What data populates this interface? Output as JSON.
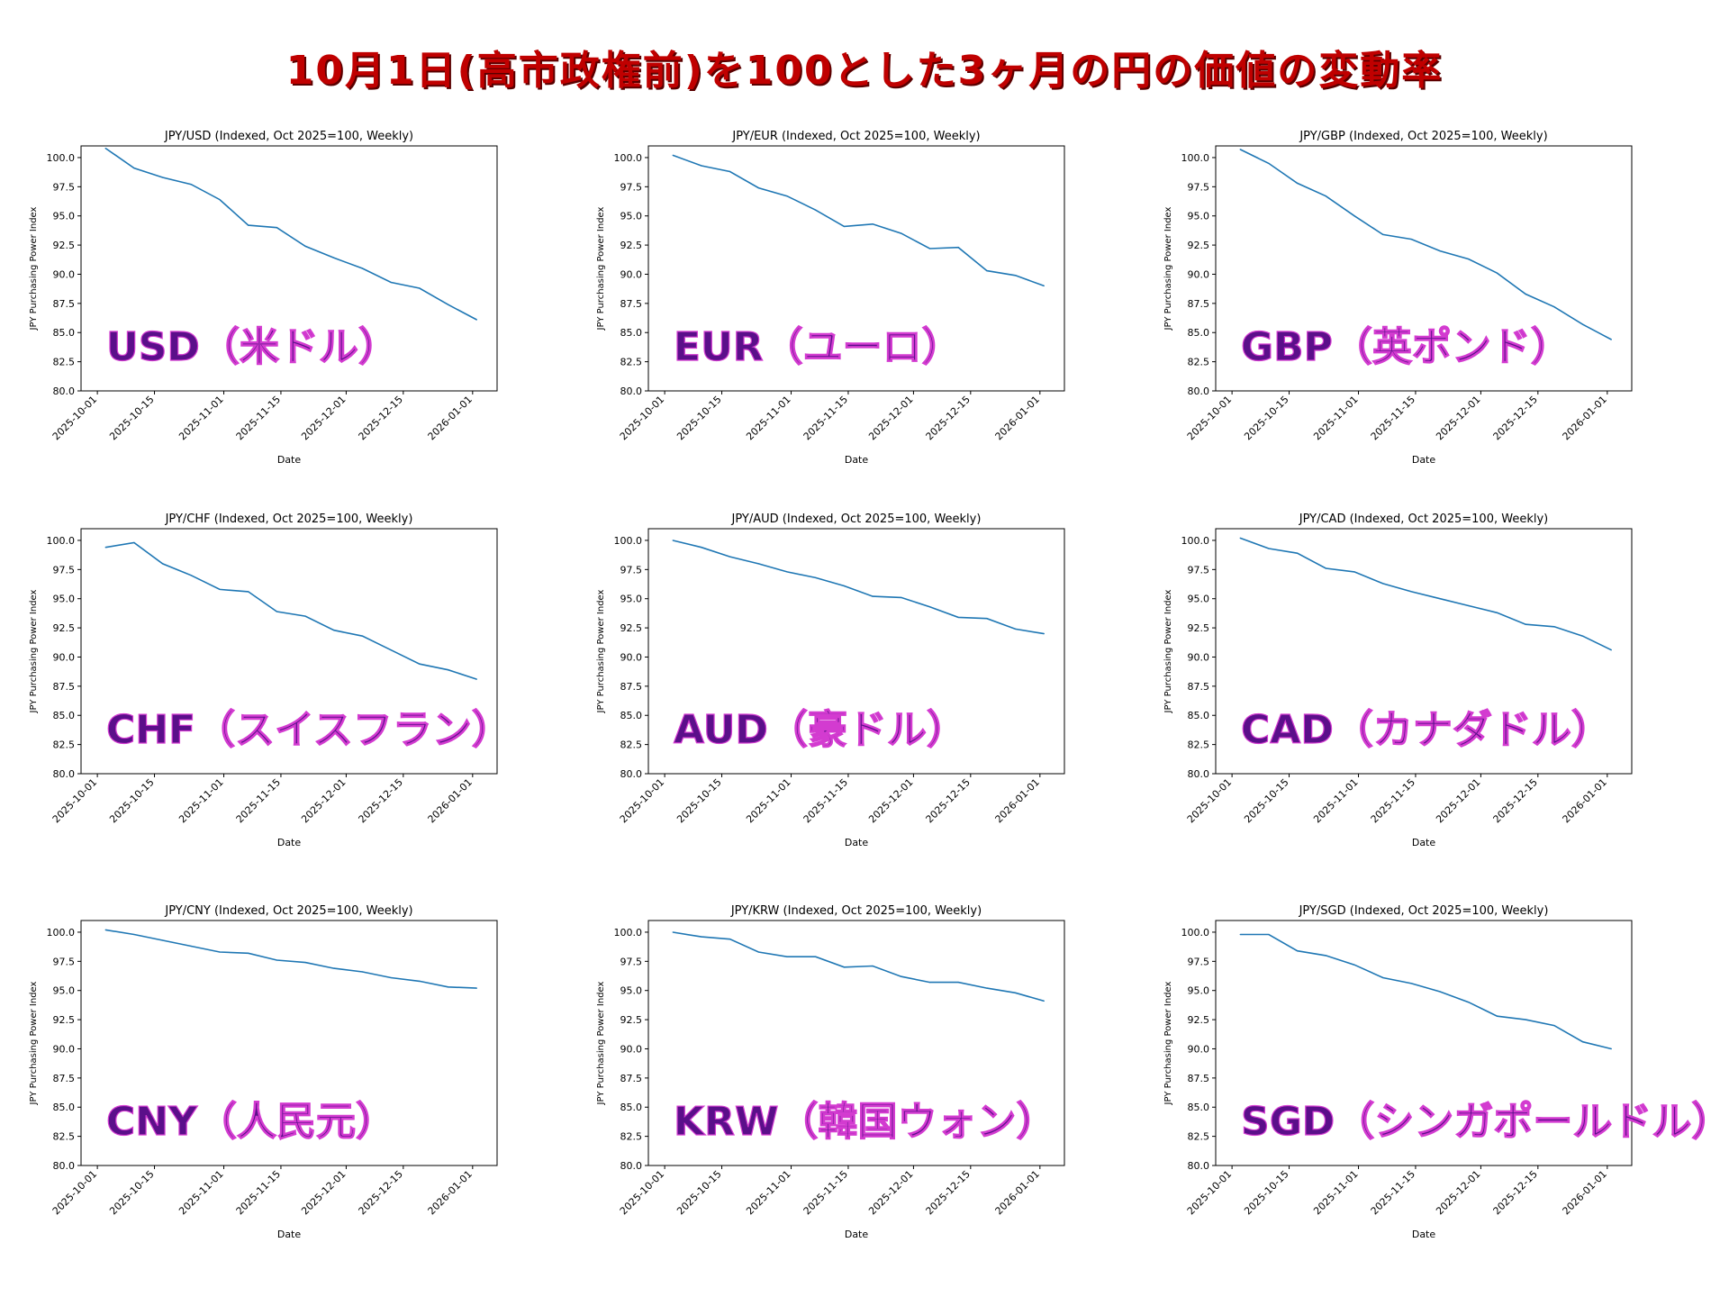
{
  "page": {
    "title": "10月1日(高市政権前)を100とした3ヶ月の円の価値の変動率"
  },
  "style": {
    "line_color": "#1f77b4",
    "overlay_fill": "#5b0f8a",
    "overlay_stroke": "#d33bd0",
    "title_color": "#c00000"
  },
  "chart_data": [
    {
      "type": "line",
      "title": "JPY/USD (Indexed, Oct 2025=100, Weekly)",
      "overlay_label": "USD（米ドル）",
      "xlabel": "Date",
      "ylabel": "JPY Purchasing Power Index",
      "ylim": [
        80,
        100
      ],
      "yticks": [
        "80.0",
        "82.5",
        "85.0",
        "87.5",
        "90.0",
        "92.5",
        "95.0",
        "97.5",
        "100.0"
      ],
      "xticks": [
        "2025-10-01",
        "2025-10-15",
        "2025-11-01",
        "2025-11-15",
        "2025-12-01",
        "2025-12-15",
        "2026-01-01"
      ],
      "x": [
        "2025-10-03",
        "2025-10-10",
        "2025-10-17",
        "2025-10-24",
        "2025-10-31",
        "2025-11-07",
        "2025-11-14",
        "2025-11-21",
        "2025-11-28",
        "2025-12-05",
        "2025-12-12",
        "2025-12-19",
        "2025-12-26",
        "2026-01-02"
      ],
      "values": [
        100.8,
        99.1,
        98.3,
        97.7,
        96.4,
        94.2,
        94.0,
        92.4,
        91.4,
        90.5,
        89.3,
        88.8,
        87.4,
        86.1
      ]
    },
    {
      "type": "line",
      "title": "JPY/EUR (Indexed, Oct 2025=100, Weekly)",
      "overlay_label": "EUR（ユーロ）",
      "xlabel": "Date",
      "ylabel": "JPY Purchasing Power Index",
      "ylim": [
        80,
        100
      ],
      "yticks": [
        "80.0",
        "82.5",
        "85.0",
        "87.5",
        "90.0",
        "92.5",
        "95.0",
        "97.5",
        "100.0"
      ],
      "xticks": [
        "2025-10-01",
        "2025-10-15",
        "2025-11-01",
        "2025-11-15",
        "2025-12-01",
        "2025-12-15",
        "2026-01-01"
      ],
      "x": [
        "2025-10-03",
        "2025-10-10",
        "2025-10-17",
        "2025-10-24",
        "2025-10-31",
        "2025-11-07",
        "2025-11-14",
        "2025-11-21",
        "2025-11-28",
        "2025-12-05",
        "2025-12-12",
        "2025-12-19",
        "2025-12-26",
        "2026-01-02"
      ],
      "values": [
        100.2,
        99.3,
        98.8,
        97.4,
        96.7,
        95.5,
        94.1,
        94.3,
        93.5,
        92.2,
        92.3,
        90.3,
        89.9,
        89.0
      ]
    },
    {
      "type": "line",
      "title": "JPY/GBP (Indexed, Oct 2025=100, Weekly)",
      "overlay_label": "GBP（英ポンド）",
      "xlabel": "Date",
      "ylabel": "JPY Purchasing Power Index",
      "ylim": [
        80,
        100
      ],
      "yticks": [
        "80.0",
        "82.5",
        "85.0",
        "87.5",
        "90.0",
        "92.5",
        "95.0",
        "97.5",
        "100.0"
      ],
      "xticks": [
        "2025-10-01",
        "2025-10-15",
        "2025-11-01",
        "2025-11-15",
        "2025-12-01",
        "2025-12-15",
        "2026-01-01"
      ],
      "x": [
        "2025-10-03",
        "2025-10-10",
        "2025-10-17",
        "2025-10-24",
        "2025-10-31",
        "2025-11-07",
        "2025-11-14",
        "2025-11-21",
        "2025-11-28",
        "2025-12-05",
        "2025-12-12",
        "2025-12-19",
        "2025-12-26",
        "2026-01-02"
      ],
      "values": [
        100.7,
        99.5,
        97.8,
        96.7,
        95.0,
        93.4,
        93.0,
        92.0,
        91.3,
        90.1,
        88.3,
        87.2,
        85.7,
        84.4
      ]
    },
    {
      "type": "line",
      "title": "JPY/CHF (Indexed, Oct 2025=100, Weekly)",
      "overlay_label": "CHF（スイスフラン）",
      "xlabel": "Date",
      "ylabel": "JPY Purchasing Power Index",
      "ylim": [
        80,
        100
      ],
      "yticks": [
        "80.0",
        "82.5",
        "85.0",
        "87.5",
        "90.0",
        "92.5",
        "95.0",
        "97.5",
        "100.0"
      ],
      "xticks": [
        "2025-10-01",
        "2025-10-15",
        "2025-11-01",
        "2025-11-15",
        "2025-12-01",
        "2025-12-15",
        "2026-01-01"
      ],
      "x": [
        "2025-10-03",
        "2025-10-10",
        "2025-10-17",
        "2025-10-24",
        "2025-10-31",
        "2025-11-07",
        "2025-11-14",
        "2025-11-21",
        "2025-11-28",
        "2025-12-05",
        "2025-12-12",
        "2025-12-19",
        "2025-12-26",
        "2026-01-02"
      ],
      "values": [
        99.4,
        99.8,
        98.0,
        97.0,
        95.8,
        95.6,
        93.9,
        93.5,
        92.3,
        91.8,
        90.6,
        89.4,
        88.9,
        88.1
      ]
    },
    {
      "type": "line",
      "title": "JPY/AUD (Indexed, Oct 2025=100, Weekly)",
      "overlay_label": "AUD（豪ドル）",
      "xlabel": "Date",
      "ylabel": "JPY Purchasing Power Index",
      "ylim": [
        80,
        100
      ],
      "yticks": [
        "80.0",
        "82.5",
        "85.0",
        "87.5",
        "90.0",
        "92.5",
        "95.0",
        "97.5",
        "100.0"
      ],
      "xticks": [
        "2025-10-01",
        "2025-10-15",
        "2025-11-01",
        "2025-11-15",
        "2025-12-01",
        "2025-12-15",
        "2026-01-01"
      ],
      "x": [
        "2025-10-03",
        "2025-10-10",
        "2025-10-17",
        "2025-10-24",
        "2025-10-31",
        "2025-11-07",
        "2025-11-14",
        "2025-11-21",
        "2025-11-28",
        "2025-12-05",
        "2025-12-12",
        "2025-12-19",
        "2025-12-26",
        "2026-01-02"
      ],
      "values": [
        100.0,
        99.4,
        98.6,
        98.0,
        97.3,
        96.8,
        96.1,
        95.2,
        95.1,
        94.3,
        93.4,
        93.3,
        92.4,
        92.0
      ]
    },
    {
      "type": "line",
      "title": "JPY/CAD (Indexed, Oct 2025=100, Weekly)",
      "overlay_label": "CAD（カナダドル）",
      "xlabel": "Date",
      "ylabel": "JPY Purchasing Power Index",
      "ylim": [
        80,
        100
      ],
      "yticks": [
        "80.0",
        "82.5",
        "85.0",
        "87.5",
        "90.0",
        "92.5",
        "95.0",
        "97.5",
        "100.0"
      ],
      "xticks": [
        "2025-10-01",
        "2025-10-15",
        "2025-11-01",
        "2025-11-15",
        "2025-12-01",
        "2025-12-15",
        "2026-01-01"
      ],
      "x": [
        "2025-10-03",
        "2025-10-10",
        "2025-10-17",
        "2025-10-24",
        "2025-10-31",
        "2025-11-07",
        "2025-11-14",
        "2025-11-21",
        "2025-11-28",
        "2025-12-05",
        "2025-12-12",
        "2025-12-19",
        "2025-12-26",
        "2026-01-02"
      ],
      "values": [
        100.2,
        99.3,
        98.9,
        97.6,
        97.3,
        96.3,
        95.6,
        95.0,
        94.4,
        93.8,
        92.8,
        92.6,
        91.8,
        90.6
      ]
    },
    {
      "type": "line",
      "title": "JPY/CNY (Indexed, Oct 2025=100, Weekly)",
      "overlay_label": "CNY（人民元）",
      "xlabel": "Date",
      "ylabel": "JPY Purchasing Power Index",
      "ylim": [
        80,
        100
      ],
      "yticks": [
        "80.0",
        "82.5",
        "85.0",
        "87.5",
        "90.0",
        "92.5",
        "95.0",
        "97.5",
        "100.0"
      ],
      "xticks": [
        "2025-10-01",
        "2025-10-15",
        "2025-11-01",
        "2025-11-15",
        "2025-12-01",
        "2025-12-15",
        "2026-01-01"
      ],
      "x": [
        "2025-10-03",
        "2025-10-10",
        "2025-10-17",
        "2025-10-24",
        "2025-10-31",
        "2025-11-07",
        "2025-11-14",
        "2025-11-21",
        "2025-11-28",
        "2025-12-05",
        "2025-12-12",
        "2025-12-19",
        "2025-12-26",
        "2026-01-02"
      ],
      "values": [
        100.2,
        99.8,
        99.3,
        98.8,
        98.3,
        98.2,
        97.6,
        97.4,
        96.9,
        96.6,
        96.1,
        95.8,
        95.3,
        95.2
      ]
    },
    {
      "type": "line",
      "title": "JPY/KRW (Indexed, Oct 2025=100, Weekly)",
      "overlay_label": "KRW（韓国ウォン）",
      "xlabel": "Date",
      "ylabel": "JPY Purchasing Power Index",
      "ylim": [
        80,
        100
      ],
      "yticks": [
        "80.0",
        "82.5",
        "85.0",
        "87.5",
        "90.0",
        "92.5",
        "95.0",
        "97.5",
        "100.0"
      ],
      "xticks": [
        "2025-10-01",
        "2025-10-15",
        "2025-11-01",
        "2025-11-15",
        "2025-12-01",
        "2025-12-15",
        "2026-01-01"
      ],
      "x": [
        "2025-10-03",
        "2025-10-10",
        "2025-10-17",
        "2025-10-24",
        "2025-10-31",
        "2025-11-07",
        "2025-11-14",
        "2025-11-21",
        "2025-11-28",
        "2025-12-05",
        "2025-12-12",
        "2025-12-19",
        "2025-12-26",
        "2026-01-02"
      ],
      "values": [
        100.0,
        99.6,
        99.4,
        98.3,
        97.9,
        97.9,
        97.0,
        97.1,
        96.2,
        95.7,
        95.7,
        95.2,
        94.8,
        94.1
      ]
    },
    {
      "type": "line",
      "title": "JPY/SGD (Indexed, Oct 2025=100, Weekly)",
      "overlay_label": "SGD（シンガポールドル）",
      "xlabel": "Date",
      "ylabel": "JPY Purchasing Power Index",
      "ylim": [
        80,
        100
      ],
      "yticks": [
        "80.0",
        "82.5",
        "85.0",
        "87.5",
        "90.0",
        "92.5",
        "95.0",
        "97.5",
        "100.0"
      ],
      "xticks": [
        "2025-10-01",
        "2025-10-15",
        "2025-11-01",
        "2025-11-15",
        "2025-12-01",
        "2025-12-15",
        "2026-01-01"
      ],
      "x": [
        "2025-10-03",
        "2025-10-10",
        "2025-10-17",
        "2025-10-24",
        "2025-10-31",
        "2025-11-07",
        "2025-11-14",
        "2025-11-21",
        "2025-11-28",
        "2025-12-05",
        "2025-12-12",
        "2025-12-19",
        "2025-12-26",
        "2026-01-02"
      ],
      "values": [
        99.8,
        99.8,
        98.4,
        98.0,
        97.2,
        96.1,
        95.6,
        94.9,
        94.0,
        92.8,
        92.5,
        92.0,
        90.6,
        90.0
      ]
    }
  ]
}
